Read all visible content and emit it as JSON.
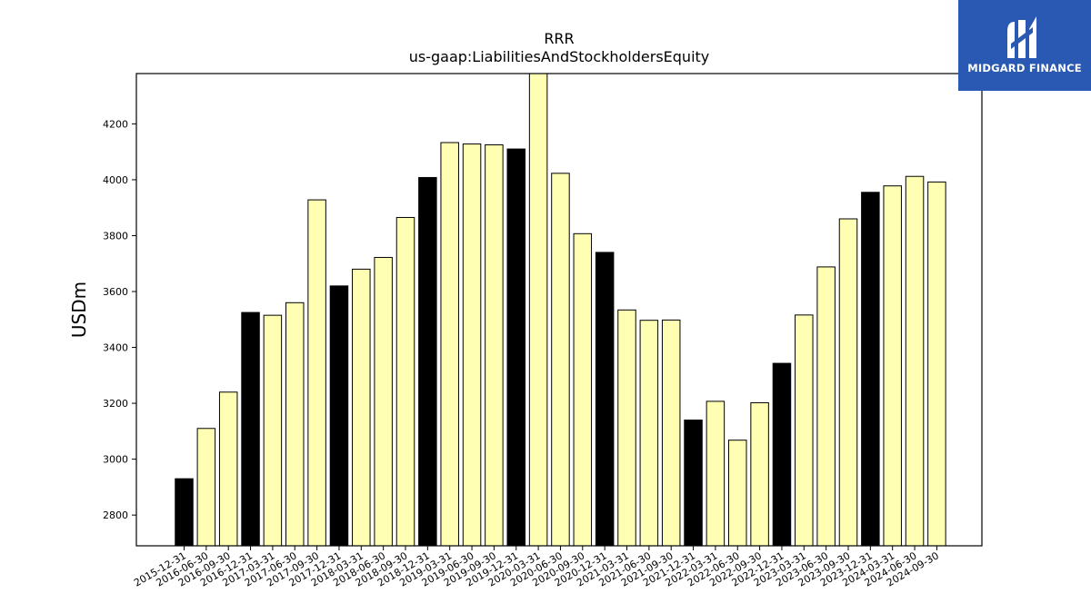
{
  "brand": {
    "name": "MIDGARD FINANCE",
    "color": "#2a59b3"
  },
  "chart_data": {
    "type": "bar",
    "title": "RRR",
    "subtitle": "us-gaap:LiabilitiesAndStockholdersEquity",
    "ylabel": "USDm",
    "xlabel": "",
    "ylim": [
      2690,
      4380
    ],
    "yticks": [
      2800,
      3000,
      3200,
      3400,
      3600,
      3800,
      4000,
      4200
    ],
    "grid": false,
    "colors": {
      "annual": "#000000",
      "quarterly": "#ffffb3"
    },
    "categories": [
      "2015-12-31",
      "2016-06-30",
      "2016-09-30",
      "2016-12-31",
      "2017-03-31",
      "2017-06-30",
      "2017-09-30",
      "2017-12-31",
      "2018-03-31",
      "2018-06-30",
      "2018-09-30",
      "2018-12-31",
      "2019-03-31",
      "2019-06-30",
      "2019-09-30",
      "2019-12-31",
      "2020-03-31",
      "2020-06-30",
      "2020-09-30",
      "2020-12-31",
      "2021-03-31",
      "2021-06-30",
      "2021-09-30",
      "2021-12-31",
      "2022-03-31",
      "2022-06-30",
      "2022-09-30",
      "2022-12-31",
      "2023-03-31",
      "2023-06-30",
      "2023-09-30",
      "2023-12-31",
      "2024-03-31",
      "2024-06-30",
      "2024-09-30"
    ],
    "values": [
      2930,
      3110,
      3240,
      3525,
      3515,
      3560,
      3928,
      3620,
      3680,
      3722,
      3865,
      4008,
      4133,
      4128,
      4125,
      4110,
      4380,
      4023,
      3807,
      3740,
      3534,
      3497,
      3498,
      3140,
      3207,
      3068,
      3202,
      3343,
      3516,
      3688,
      3860,
      3955,
      3978,
      4012,
      3992
    ]
  }
}
